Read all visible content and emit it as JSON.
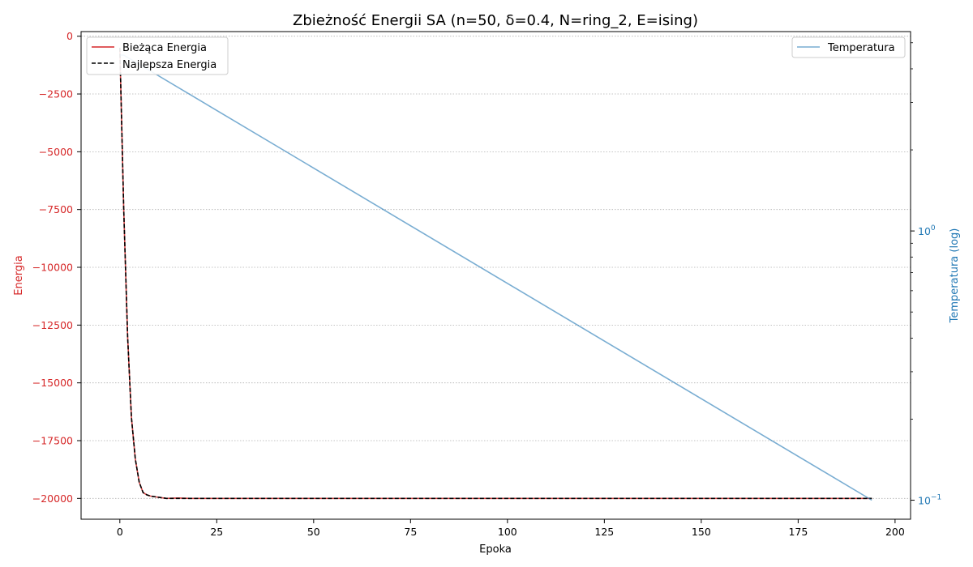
{
  "chart_data": {
    "type": "line",
    "title": "Zbieżność Energii SA (n=50, δ=0.4, N=ring_2, E=ising)",
    "xlabel": "Epoka",
    "ylabel_left": "Energia",
    "ylabel_right": "Temperatura (log)",
    "xlim": [
      -10,
      204
    ],
    "ylim_left": [
      -20900,
      200
    ],
    "ylim_right_log": [
      0.085,
      5.5
    ],
    "right_scale": "log",
    "x_ticks": [
      0,
      25,
      50,
      75,
      100,
      125,
      150,
      175,
      200
    ],
    "x_tick_labels": [
      "0",
      "25",
      "50",
      "75",
      "100",
      "125",
      "150",
      "175",
      "200"
    ],
    "y_left_ticks": [
      0,
      -2500,
      -5000,
      -7500,
      -10000,
      -12500,
      -15000,
      -17500,
      -20000
    ],
    "y_left_tick_labels": [
      "0",
      "−2500",
      "−5000",
      "−7500",
      "−10000",
      "−12500",
      "−15000",
      "−17500",
      "−20000"
    ],
    "y_right_major_ticks": [
      0.1,
      1.0
    ],
    "y_right_major_labels": [
      {
        "base": "10",
        "exp": "−1"
      },
      {
        "base": "10",
        "exp": "0"
      }
    ],
    "y_right_minor_ticks": [
      0.2,
      0.3,
      0.4,
      0.5,
      0.6,
      0.7,
      0.8,
      0.9,
      2,
      3,
      4,
      5
    ],
    "grid": "horizontal-dotted",
    "legend_left_placement": "top-left",
    "legend_right_placement": "top-right",
    "colors": {
      "energy": "#d62728",
      "best": "#000000",
      "temperature": "#1f77b4",
      "left_axis": "#d62728",
      "right_axis": "#1f77b4",
      "grid": "#b0b0b0"
    },
    "series": [
      {
        "name": "Bieżąca Energia",
        "axis": "left",
        "style": "solid",
        "x": [
          0,
          1,
          2,
          3,
          4,
          5,
          6,
          7,
          8,
          10,
          12,
          15,
          18,
          20,
          50,
          100,
          150,
          194
        ],
        "y": [
          -500,
          -7500,
          -13000,
          -16500,
          -18300,
          -19300,
          -19750,
          -19850,
          -19900,
          -19950,
          -20000,
          -19980,
          -20000,
          -20000,
          -20000,
          -20000,
          -20000,
          -20000
        ]
      },
      {
        "name": "Najlepsza Energia",
        "axis": "left",
        "style": "dashed",
        "x": [
          0,
          1,
          2,
          3,
          4,
          5,
          6,
          7,
          8,
          10,
          12,
          15,
          18,
          20,
          50,
          100,
          150,
          194
        ],
        "y": [
          -500,
          -7500,
          -13000,
          -16500,
          -18300,
          -19300,
          -19750,
          -19850,
          -19900,
          -19950,
          -20000,
          -20000,
          -20000,
          -20000,
          -20000,
          -20000,
          -20000,
          -20000
        ]
      },
      {
        "name": "Temperatura",
        "axis": "right",
        "style": "solid",
        "x": [
          0,
          1,
          194
        ],
        "y": [
          4.5,
          4.5,
          0.1
        ]
      }
    ]
  }
}
